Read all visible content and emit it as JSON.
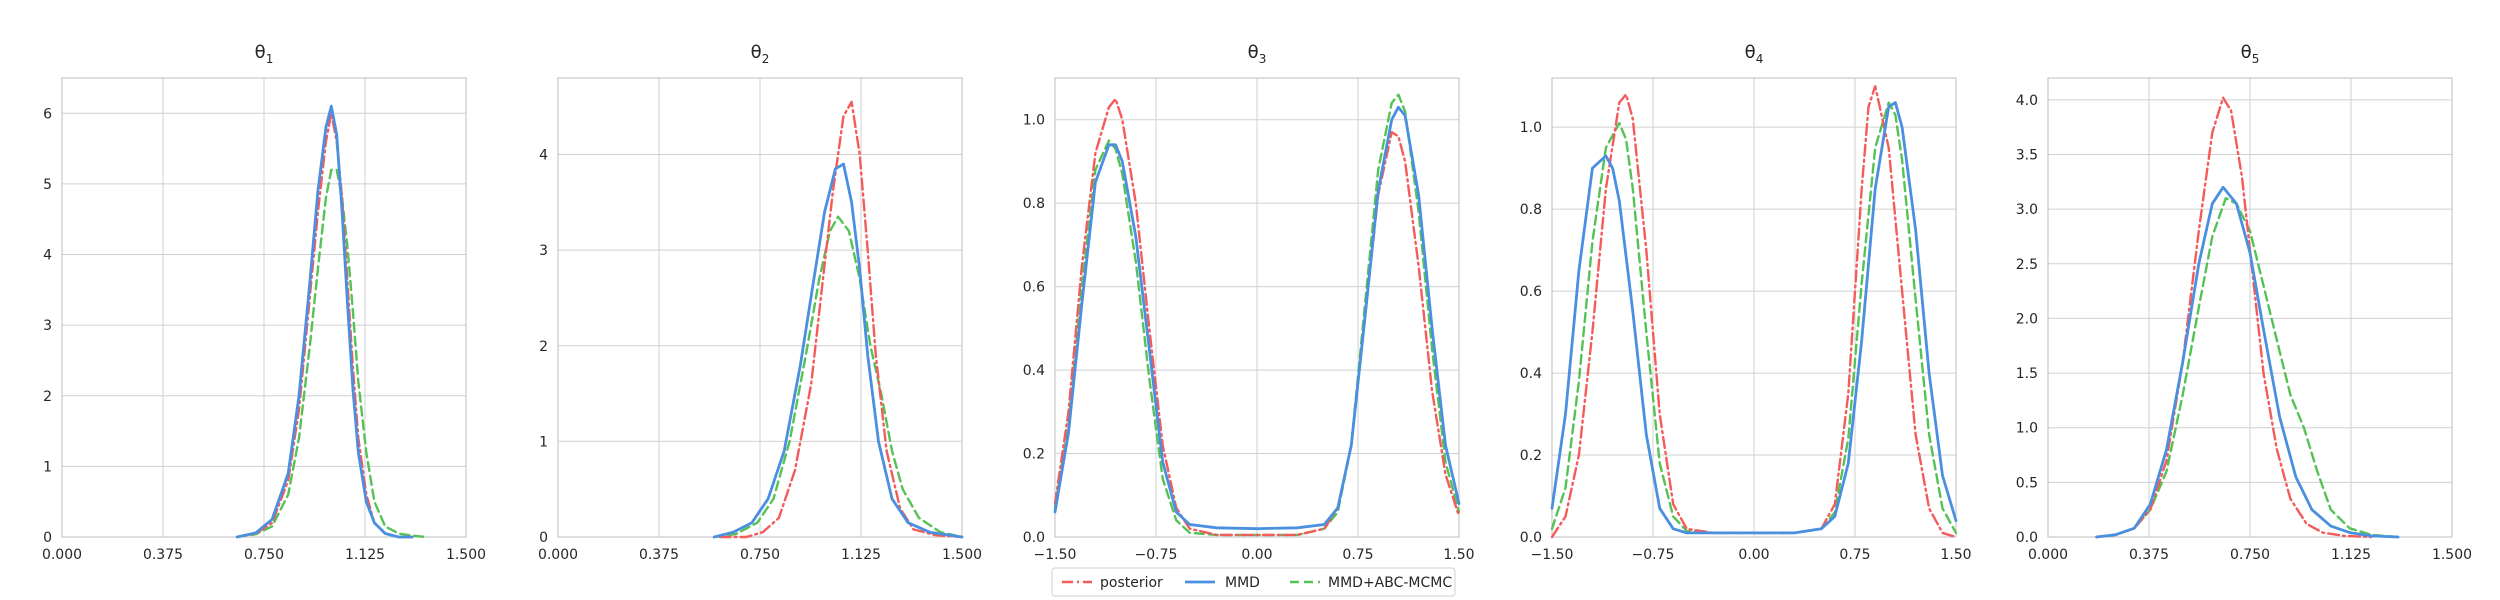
{
  "chart_data": [
    {
      "type": "line",
      "title_main": "θ",
      "title_sub": "1",
      "xlim": [
        0,
        1.5
      ],
      "ylim": [
        0,
        6.5
      ],
      "x_ticks": [
        "0.000",
        "0.375",
        "0.750",
        "1.125",
        "1.500"
      ],
      "y_ticks": [
        "0",
        "1",
        "2",
        "3",
        "4",
        "5",
        "6"
      ],
      "grid": true,
      "series": [
        {
          "name": "posterior",
          "color": "#f45b5b",
          "dash": "dashdot",
          "x": [
            0.65,
            0.72,
            0.78,
            0.84,
            0.88,
            0.92,
            0.95,
            0.98,
            1.0,
            1.02,
            1.04,
            1.06,
            1.08,
            1.1,
            1.13,
            1.16,
            1.2,
            1.25,
            1.3
          ],
          "y": [
            0.0,
            0.05,
            0.2,
            0.8,
            1.8,
            3.4,
            4.6,
            5.6,
            6.0,
            5.6,
            4.8,
            3.6,
            2.4,
            1.4,
            0.6,
            0.2,
            0.05,
            0.0,
            0.0
          ]
        },
        {
          "name": "MMD",
          "color": "#4a8fe0",
          "dash": "solid",
          "x": [
            0.65,
            0.72,
            0.78,
            0.84,
            0.88,
            0.92,
            0.95,
            0.98,
            1.0,
            1.02,
            1.04,
            1.06,
            1.08,
            1.1,
            1.13,
            1.16,
            1.2,
            1.25,
            1.3
          ],
          "y": [
            0.0,
            0.06,
            0.25,
            0.9,
            2.0,
            3.6,
            4.9,
            5.8,
            6.1,
            5.7,
            4.6,
            3.3,
            2.1,
            1.2,
            0.5,
            0.2,
            0.05,
            0.0,
            0.0
          ]
        },
        {
          "name": "MMD+ABC-MCMC",
          "color": "#55c255",
          "dash": "dashed",
          "x": [
            0.65,
            0.72,
            0.78,
            0.84,
            0.88,
            0.92,
            0.95,
            0.98,
            1.0,
            1.02,
            1.04,
            1.06,
            1.08,
            1.1,
            1.13,
            1.16,
            1.2,
            1.25,
            1.3,
            1.35
          ],
          "y": [
            0.0,
            0.04,
            0.15,
            0.6,
            1.4,
            2.7,
            3.8,
            4.8,
            5.2,
            5.2,
            4.8,
            4.1,
            3.2,
            2.2,
            1.2,
            0.5,
            0.15,
            0.05,
            0.02,
            0.0
          ]
        }
      ]
    },
    {
      "type": "line",
      "title_main": "θ",
      "title_sub": "2",
      "xlim": [
        0,
        1.5
      ],
      "ylim": [
        0,
        4.8
      ],
      "x_ticks": [
        "0.000",
        "0.375",
        "0.750",
        "1.125",
        "1.500"
      ],
      "y_ticks": [
        "0",
        "1",
        "2",
        "3",
        "4"
      ],
      "grid": true,
      "series": [
        {
          "name": "posterior",
          "color": "#f45b5b",
          "dash": "dashdot",
          "x": [
            0.6,
            0.7,
            0.76,
            0.82,
            0.88,
            0.94,
            0.98,
            1.02,
            1.06,
            1.09,
            1.12,
            1.15,
            1.18,
            1.22,
            1.27,
            1.32,
            1.4,
            1.5
          ],
          "y": [
            0.0,
            0.0,
            0.05,
            0.2,
            0.7,
            1.6,
            2.6,
            3.6,
            4.4,
            4.55,
            4.0,
            3.0,
            1.9,
            0.9,
            0.3,
            0.08,
            0.02,
            0.0
          ]
        },
        {
          "name": "MMD",
          "color": "#4a8fe0",
          "dash": "solid",
          "x": [
            0.58,
            0.65,
            0.72,
            0.78,
            0.84,
            0.9,
            0.95,
            0.99,
            1.03,
            1.06,
            1.09,
            1.12,
            1.15,
            1.19,
            1.24,
            1.3,
            1.38,
            1.5
          ],
          "y": [
            0.0,
            0.05,
            0.15,
            0.4,
            0.9,
            1.8,
            2.7,
            3.4,
            3.85,
            3.9,
            3.5,
            2.8,
            1.9,
            1.0,
            0.4,
            0.15,
            0.05,
            0.0
          ]
        },
        {
          "name": "MMD+ABC-MCMC",
          "color": "#55c255",
          "dash": "dashed",
          "x": [
            0.58,
            0.66,
            0.74,
            0.8,
            0.86,
            0.92,
            0.97,
            1.01,
            1.04,
            1.08,
            1.12,
            1.16,
            1.2,
            1.24,
            1.28,
            1.34,
            1.42,
            1.5
          ],
          "y": [
            0.0,
            0.03,
            0.15,
            0.4,
            1.0,
            1.9,
            2.7,
            3.2,
            3.35,
            3.2,
            2.7,
            2.0,
            1.5,
            0.9,
            0.5,
            0.2,
            0.05,
            0.0
          ]
        }
      ]
    },
    {
      "type": "line",
      "title_main": "θ",
      "title_sub": "3",
      "xlim": [
        -1.5,
        1.5
      ],
      "ylim": [
        0,
        1.1
      ],
      "x_ticks": [
        "−1.50",
        "−0.75",
        "0.00",
        "0.75",
        "1.50"
      ],
      "y_ticks": [
        "0.0",
        "0.2",
        "0.4",
        "0.6",
        "0.8",
        "1.0"
      ],
      "grid": true,
      "series": [
        {
          "name": "posterior",
          "color": "#f45b5b",
          "dash": "dashdot",
          "x": [
            -1.5,
            -1.4,
            -1.3,
            -1.2,
            -1.1,
            -1.05,
            -1.0,
            -0.9,
            -0.8,
            -0.7,
            -0.6,
            -0.5,
            -0.3,
            0.0,
            0.3,
            0.5,
            0.6,
            0.7,
            0.8,
            0.9,
            1.0,
            1.05,
            1.1,
            1.2,
            1.3,
            1.4,
            1.5
          ],
          "y": [
            0.08,
            0.3,
            0.65,
            0.92,
            1.03,
            1.05,
            1.0,
            0.8,
            0.5,
            0.22,
            0.07,
            0.02,
            0.005,
            0.005,
            0.005,
            0.02,
            0.07,
            0.22,
            0.52,
            0.82,
            0.97,
            0.96,
            0.9,
            0.65,
            0.35,
            0.15,
            0.05
          ]
        },
        {
          "name": "MMD",
          "color": "#4a8fe0",
          "dash": "solid",
          "x": [
            -1.5,
            -1.4,
            -1.3,
            -1.2,
            -1.1,
            -1.05,
            -1.0,
            -0.9,
            -0.8,
            -0.7,
            -0.6,
            -0.5,
            -0.3,
            0.0,
            0.3,
            0.5,
            0.6,
            0.7,
            0.8,
            0.9,
            1.0,
            1.05,
            1.1,
            1.2,
            1.3,
            1.4,
            1.5
          ],
          "y": [
            0.06,
            0.25,
            0.56,
            0.85,
            0.94,
            0.94,
            0.9,
            0.72,
            0.45,
            0.18,
            0.06,
            0.03,
            0.022,
            0.02,
            0.022,
            0.03,
            0.07,
            0.22,
            0.52,
            0.83,
            1.0,
            1.03,
            1.01,
            0.82,
            0.5,
            0.22,
            0.08
          ]
        },
        {
          "name": "MMD+ABC-MCMC",
          "color": "#55c255",
          "dash": "dashed",
          "x": [
            -1.5,
            -1.4,
            -1.3,
            -1.2,
            -1.1,
            -1.05,
            -1.0,
            -0.9,
            -0.8,
            -0.7,
            -0.6,
            -0.5,
            -0.3,
            0.0,
            0.3,
            0.5,
            0.6,
            0.7,
            0.8,
            0.9,
            1.0,
            1.05,
            1.1,
            1.2,
            1.3,
            1.4,
            1.5
          ],
          "y": [
            0.07,
            0.27,
            0.6,
            0.88,
            0.95,
            0.93,
            0.87,
            0.66,
            0.38,
            0.14,
            0.04,
            0.01,
            0.005,
            0.005,
            0.005,
            0.02,
            0.06,
            0.22,
            0.55,
            0.88,
            1.04,
            1.06,
            1.02,
            0.78,
            0.45,
            0.18,
            0.06
          ]
        }
      ]
    },
    {
      "type": "line",
      "title_main": "θ",
      "title_sub": "4",
      "xlim": [
        -1.5,
        1.5
      ],
      "ylim": [
        0,
        1.12
      ],
      "x_ticks": [
        "−1.50",
        "−0.75",
        "0.00",
        "0.75",
        "1.50"
      ],
      "y_ticks": [
        "0.0",
        "0.2",
        "0.4",
        "0.6",
        "0.8",
        "1.0"
      ],
      "grid": true,
      "series": [
        {
          "name": "posterior",
          "color": "#f45b5b",
          "dash": "dashdot",
          "x": [
            -1.5,
            -1.4,
            -1.3,
            -1.2,
            -1.1,
            -1.0,
            -0.95,
            -0.9,
            -0.8,
            -0.7,
            -0.6,
            -0.5,
            -0.3,
            0.0,
            0.3,
            0.5,
            0.6,
            0.7,
            0.8,
            0.85,
            0.9,
            1.0,
            1.1,
            1.2,
            1.3,
            1.4,
            1.5
          ],
          "y": [
            0.0,
            0.05,
            0.2,
            0.5,
            0.85,
            1.06,
            1.08,
            1.02,
            0.7,
            0.3,
            0.08,
            0.02,
            0.01,
            0.01,
            0.01,
            0.02,
            0.08,
            0.35,
            0.85,
            1.05,
            1.1,
            0.95,
            0.6,
            0.25,
            0.07,
            0.01,
            0.0
          ]
        },
        {
          "name": "MMD",
          "color": "#4a8fe0",
          "dash": "solid",
          "x": [
            -1.5,
            -1.4,
            -1.3,
            -1.2,
            -1.1,
            -1.05,
            -1.0,
            -0.9,
            -0.8,
            -0.7,
            -0.6,
            -0.5,
            -0.3,
            0.0,
            0.3,
            0.5,
            0.6,
            0.7,
            0.8,
            0.9,
            1.0,
            1.05,
            1.1,
            1.2,
            1.3,
            1.4,
            1.5
          ],
          "y": [
            0.07,
            0.3,
            0.65,
            0.9,
            0.93,
            0.9,
            0.82,
            0.55,
            0.25,
            0.07,
            0.02,
            0.01,
            0.01,
            0.01,
            0.01,
            0.02,
            0.05,
            0.18,
            0.48,
            0.85,
            1.05,
            1.06,
            1.0,
            0.75,
            0.4,
            0.15,
            0.04
          ]
        },
        {
          "name": "MMD+ABC-MCMC",
          "color": "#55c255",
          "dash": "dashed",
          "x": [
            -1.5,
            -1.4,
            -1.3,
            -1.2,
            -1.1,
            -1.0,
            -0.95,
            -0.9,
            -0.8,
            -0.7,
            -0.6,
            -0.5,
            -0.3,
            0.0,
            0.3,
            0.5,
            0.6,
            0.7,
            0.8,
            0.9,
            1.0,
            1.05,
            1.1,
            1.2,
            1.3,
            1.4,
            1.5
          ],
          "y": [
            0.02,
            0.12,
            0.38,
            0.72,
            0.95,
            1.01,
            0.97,
            0.85,
            0.5,
            0.18,
            0.05,
            0.015,
            0.01,
            0.01,
            0.01,
            0.02,
            0.06,
            0.24,
            0.62,
            0.95,
            1.06,
            1.03,
            0.92,
            0.58,
            0.25,
            0.07,
            0.01
          ]
        }
      ]
    },
    {
      "type": "line",
      "title_main": "θ",
      "title_sub": "5",
      "xlim": [
        0,
        1.5
      ],
      "ylim": [
        0,
        4.2
      ],
      "x_ticks": [
        "0.000",
        "0.375",
        "0.750",
        "1.125",
        "1.500"
      ],
      "y_ticks": [
        "0.0",
        "0.5",
        "1.0",
        "1.5",
        "2.0",
        "2.5",
        "3.0",
        "3.5",
        "4.0"
      ],
      "grid": true,
      "series": [
        {
          "name": "posterior",
          "color": "#f45b5b",
          "dash": "dashdot",
          "x": [
            0.18,
            0.25,
            0.32,
            0.38,
            0.44,
            0.5,
            0.56,
            0.61,
            0.65,
            0.68,
            0.72,
            0.76,
            0.8,
            0.85,
            0.9,
            0.96,
            1.02,
            1.1,
            1.2
          ],
          "y": [
            0.0,
            0.02,
            0.08,
            0.25,
            0.7,
            1.6,
            2.8,
            3.7,
            4.02,
            3.9,
            3.3,
            2.4,
            1.5,
            0.8,
            0.35,
            0.12,
            0.04,
            0.01,
            0.0
          ]
        },
        {
          "name": "MMD",
          "color": "#4a8fe0",
          "dash": "solid",
          "x": [
            0.18,
            0.25,
            0.32,
            0.38,
            0.44,
            0.5,
            0.56,
            0.61,
            0.65,
            0.7,
            0.75,
            0.8,
            0.86,
            0.92,
            0.98,
            1.05,
            1.12,
            1.2,
            1.3
          ],
          "y": [
            0.0,
            0.02,
            0.08,
            0.3,
            0.8,
            1.6,
            2.5,
            3.05,
            3.2,
            3.05,
            2.6,
            1.9,
            1.1,
            0.55,
            0.25,
            0.1,
            0.04,
            0.01,
            0.0
          ]
        },
        {
          "name": "MMD+ABC-MCMC",
          "color": "#55c255",
          "dash": "dashed",
          "x": [
            0.18,
            0.25,
            0.32,
            0.38,
            0.44,
            0.5,
            0.56,
            0.61,
            0.66,
            0.7,
            0.75,
            0.8,
            0.85,
            0.9,
            0.95,
            1.0,
            1.05,
            1.12,
            1.2,
            1.3
          ],
          "y": [
            0.0,
            0.02,
            0.08,
            0.25,
            0.6,
            1.3,
            2.1,
            2.75,
            3.1,
            3.05,
            2.8,
            2.3,
            1.8,
            1.3,
            1.0,
            0.6,
            0.25,
            0.08,
            0.02,
            0.0
          ]
        }
      ]
    }
  ],
  "legend": {
    "placement": "bottom-center",
    "items": [
      {
        "label": "posterior",
        "color": "#f45b5b",
        "dash": "dashdot"
      },
      {
        "label": "MMD",
        "color": "#4a8fe0",
        "dash": "solid"
      },
      {
        "label": "MMD+ABC-MCMC",
        "color": "#55c255",
        "dash": "dashed"
      }
    ]
  }
}
